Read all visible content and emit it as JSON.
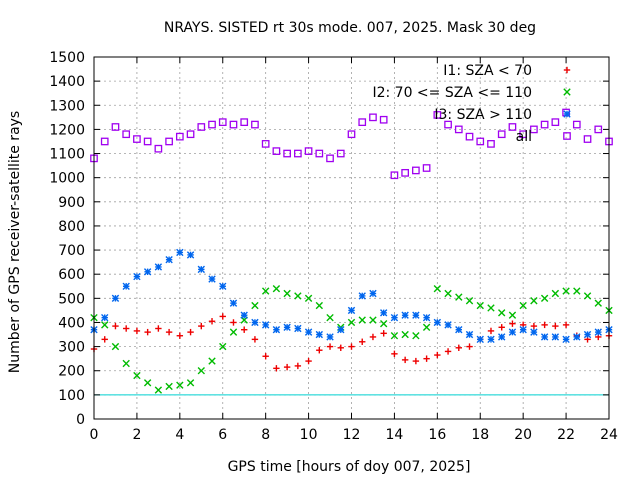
{
  "chart_data": {
    "type": "scatter",
    "title": "NRAYS. SISTED rt 30s mode. 007, 2025. Mask 30 deg",
    "xlabel": "GPS time [hours of doy 007, 2025]",
    "ylabel": "Number of GPS receiver-satellite rays",
    "xlim": [
      0,
      24
    ],
    "ylim": [
      0,
      1500
    ],
    "x_ticks": [
      "0",
      "2",
      "4",
      "6",
      "8",
      "10",
      "12",
      "14",
      "16",
      "18",
      "20",
      "22",
      "24"
    ],
    "y_ticks": [
      "0",
      "100",
      "200",
      "300",
      "400",
      "500",
      "600",
      "700",
      "800",
      "900",
      "1000",
      "1100",
      "1200",
      "1300",
      "1400",
      "1500"
    ],
    "grid": true,
    "legend_position": "top-right",
    "reference_line": {
      "y": 100,
      "color": "#00d0d0"
    },
    "series": [
      {
        "name": "I1: SZA < 70",
        "marker": "+",
        "color": "#ee0000",
        "x": [
          0,
          0.5,
          1,
          1.5,
          2,
          2.5,
          3,
          3.5,
          4,
          4.5,
          5,
          5.5,
          6,
          6.5,
          7,
          7.5,
          8,
          8.5,
          9,
          9.5,
          10,
          10.5,
          11,
          11.5,
          12,
          12.5,
          13,
          13.5,
          14,
          14.5,
          15,
          15.5,
          16,
          16.5,
          17,
          17.5,
          18,
          18.5,
          19,
          19.5,
          20,
          20.5,
          21,
          21.5,
          22,
          22.5,
          23,
          23.5,
          24
        ],
        "y": [
          290,
          330,
          385,
          375,
          365,
          360,
          375,
          360,
          345,
          360,
          385,
          405,
          425,
          400,
          370,
          330,
          260,
          210,
          215,
          220,
          240,
          285,
          300,
          295,
          300,
          320,
          340,
          355,
          270,
          245,
          240,
          250,
          265,
          280,
          295,
          300,
          330,
          365,
          380,
          395,
          390,
          385,
          390,
          385,
          390,
          345,
          330,
          340,
          345
        ]
      },
      {
        "name": "I2: 70 <= SZA <= 110",
        "marker": "x",
        "color": "#00bb00",
        "x": [
          0,
          0.5,
          1,
          1.5,
          2,
          2.5,
          3,
          3.5,
          4,
          4.5,
          5,
          5.5,
          6,
          6.5,
          7,
          7.5,
          8,
          8.5,
          9,
          9.5,
          10,
          10.5,
          11,
          11.5,
          12,
          12.5,
          13,
          13.5,
          14,
          14.5,
          15,
          15.5,
          16,
          16.5,
          17,
          17.5,
          18,
          18.5,
          19,
          19.5,
          20,
          20.5,
          21,
          21.5,
          22,
          22.5,
          23,
          23.5,
          24
        ],
        "y": [
          420,
          390,
          300,
          230,
          180,
          150,
          120,
          135,
          140,
          150,
          200,
          240,
          300,
          360,
          410,
          470,
          530,
          540,
          520,
          510,
          500,
          470,
          420,
          380,
          400,
          410,
          410,
          395,
          345,
          350,
          345,
          380,
          540,
          520,
          505,
          490,
          470,
          460,
          440,
          430,
          470,
          490,
          500,
          520,
          530,
          530,
          510,
          480,
          450
        ]
      },
      {
        "name": "I3: SZA > 110",
        "marker": "*",
        "color": "#0066ee",
        "x": [
          0,
          0.5,
          1,
          1.5,
          2,
          2.5,
          3,
          3.5,
          4,
          4.5,
          5,
          5.5,
          6,
          6.5,
          7,
          7.5,
          8,
          8.5,
          9,
          9.5,
          10,
          10.5,
          11,
          11.5,
          12,
          12.5,
          13,
          13.5,
          14,
          14.5,
          15,
          15.5,
          16,
          16.5,
          17,
          17.5,
          18,
          18.5,
          19,
          19.5,
          20,
          20.5,
          21,
          21.5,
          22,
          22.5,
          23,
          23.5,
          24
        ],
        "y": [
          370,
          420,
          500,
          550,
          590,
          610,
          630,
          660,
          690,
          680,
          620,
          580,
          550,
          480,
          430,
          400,
          390,
          370,
          380,
          375,
          360,
          350,
          340,
          370,
          450,
          510,
          520,
          440,
          420,
          430,
          430,
          420,
          400,
          390,
          370,
          350,
          330,
          330,
          340,
          360,
          370,
          360,
          340,
          340,
          330,
          340,
          350,
          360,
          370
        ]
      },
      {
        "name": "all",
        "marker": "square",
        "color": "#a000f0",
        "x": [
          0,
          0.5,
          1,
          1.5,
          2,
          2.5,
          3,
          3.5,
          4,
          4.5,
          5,
          5.5,
          6,
          6.5,
          7,
          7.5,
          8,
          8.5,
          9,
          9.5,
          10,
          10.5,
          11,
          11.5,
          12,
          12.5,
          13,
          13.5,
          14,
          14.5,
          15,
          15.5,
          16,
          16.5,
          17,
          17.5,
          18,
          18.5,
          19,
          19.5,
          20,
          20.5,
          21,
          21.5,
          22,
          22.5,
          23,
          23.5,
          24
        ],
        "y": [
          1080,
          1150,
          1210,
          1180,
          1160,
          1150,
          1120,
          1150,
          1170,
          1180,
          1210,
          1220,
          1230,
          1220,
          1230,
          1220,
          1140,
          1110,
          1100,
          1100,
          1110,
          1100,
          1080,
          1100,
          1180,
          1230,
          1250,
          1240,
          1010,
          1020,
          1030,
          1040,
          1260,
          1220,
          1200,
          1170,
          1150,
          1140,
          1180,
          1210,
          1180,
          1200,
          1220,
          1230,
          1270,
          1220,
          1160,
          1200,
          1150
        ]
      }
    ]
  }
}
